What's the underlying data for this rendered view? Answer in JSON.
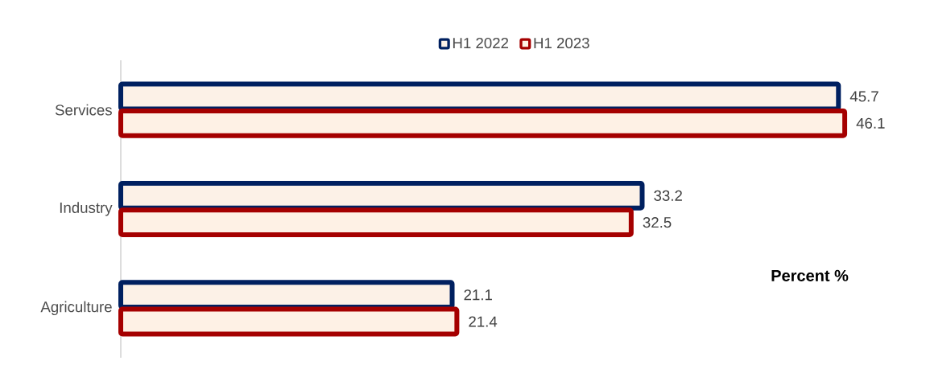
{
  "chart_data": {
    "type": "bar",
    "orientation": "horizontal",
    "categories": [
      "Services",
      "Industry",
      "Agriculture"
    ],
    "series": [
      {
        "name": "H1 2022",
        "color": "#002060",
        "values": [
          45.7,
          33.2,
          21.1
        ]
      },
      {
        "name": "H1 2023",
        "color": "#a50000",
        "values": [
          46.1,
          32.5,
          21.4
        ]
      }
    ],
    "data_labels": true,
    "legend": "top",
    "annotations": [
      "Percent %"
    ]
  }
}
